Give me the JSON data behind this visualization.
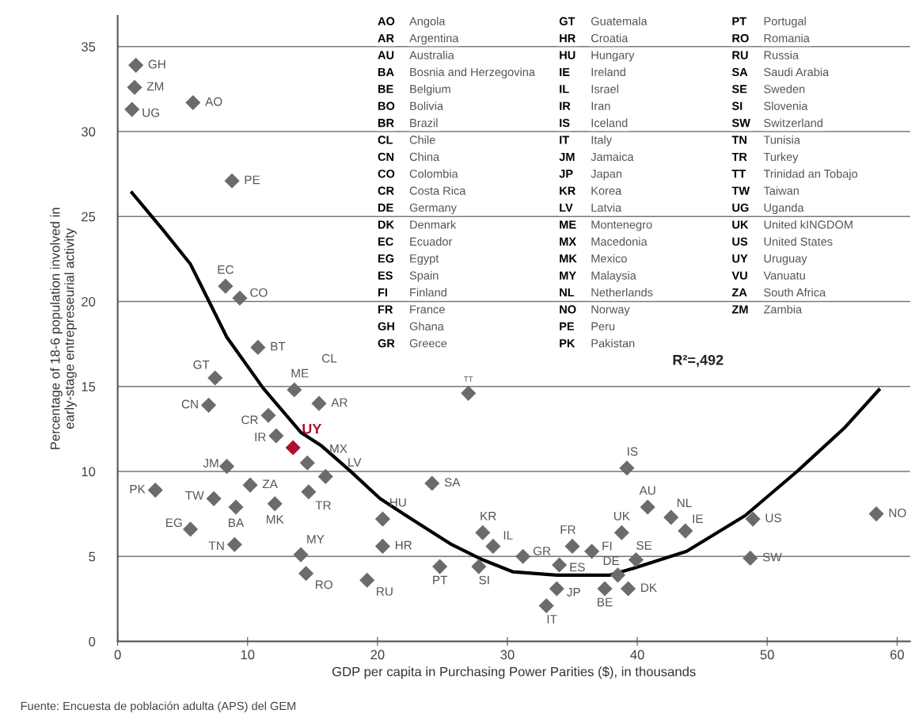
{
  "chart_data": {
    "type": "scatter",
    "xlabel": "GDP per capita in Purchasing Power Parities ($), in thousands",
    "ylabel": "Percentage of 18-6 population involved in\nearly-stage entrepreseurial activity",
    "xlim": [
      0,
      61
    ],
    "xticks": [
      0,
      10,
      20,
      30,
      40,
      50,
      60
    ],
    "ylim": [
      0,
      36.8
    ],
    "yticks": [
      0,
      5,
      10,
      15,
      20,
      25,
      30,
      35
    ],
    "grid": "y",
    "marker": "diamond",
    "series": [
      {
        "color": "#6b6b6b",
        "x": [
          1.4,
          1.3,
          1.1,
          5.8,
          8.8,
          8.3,
          9.4,
          10.8,
          7.5,
          13.6,
          15.5,
          7.0,
          11.6,
          12.2,
          14.6,
          16.0,
          8.4,
          10.2,
          2.9,
          7.4,
          9.1,
          12.1,
          14.7,
          5.6,
          9.0,
          14.1,
          14.5,
          19.2,
          27.0,
          24.2,
          20.4,
          20.4,
          28.1,
          28.9,
          31.2,
          24.8,
          27.8,
          35.0,
          36.5,
          34.0,
          33.8,
          33.0,
          37.5,
          38.8,
          38.5,
          39.3,
          39.9,
          39.2,
          40.8,
          42.6,
          43.7,
          48.9,
          48.7,
          58.4
        ],
        "values": [
          33.9,
          32.6,
          31.3,
          31.7,
          27.1,
          20.9,
          20.2,
          17.3,
          15.5,
          14.8,
          14.0,
          13.9,
          13.3,
          12.1,
          10.5,
          9.7,
          10.3,
          9.2,
          8.9,
          8.4,
          7.9,
          8.1,
          8.8,
          6.6,
          5.7,
          5.1,
          4.0,
          3.6,
          14.6,
          9.3,
          7.2,
          5.6,
          6.4,
          5.6,
          5.0,
          4.4,
          4.4,
          5.6,
          5.3,
          4.5,
          3.1,
          2.1,
          3.1,
          6.4,
          3.9,
          3.1,
          4.8,
          10.2,
          7.9,
          7.3,
          6.5,
          7.2,
          4.9,
          7.5
        ]
      },
      {
        "name": "UY",
        "color": "#b0102f",
        "x": [
          13.5
        ],
        "values": [
          11.4
        ]
      },
      {
        "type": "line",
        "marker": "none",
        "color": "#000000",
        "x": [
          1.1,
          3.5,
          5.6,
          8.4,
          11.2,
          14.1,
          15.7,
          17.8,
          20.2,
          21.6,
          25.7,
          28.1,
          30.4,
          33.8,
          37.9,
          39.7,
          43.8,
          48.3,
          52.3,
          56.0,
          58.6
        ],
        "values": [
          26.4,
          24.2,
          22.2,
          17.9,
          14.9,
          12.3,
          11.5,
          10.1,
          8.4,
          7.7,
          5.7,
          4.8,
          4.1,
          3.9,
          3.9,
          4.3,
          5.3,
          7.4,
          10.0,
          12.6,
          14.8
        ]
      }
    ],
    "annotations": [
      {
        "text": "GH",
        "x": 1.4,
        "y": 33.9
      },
      {
        "text": "ZM",
        "x": 1.3,
        "y": 32.6
      },
      {
        "text": "UG",
        "x": 1.1,
        "y": 31.3
      },
      {
        "text": "AO",
        "x": 5.8,
        "y": 31.7
      },
      {
        "text": "PE",
        "x": 8.8,
        "y": 27.1
      },
      {
        "text": "EC",
        "x": 8.3,
        "y": 20.9
      },
      {
        "text": "CO",
        "x": 9.4,
        "y": 20.2
      },
      {
        "text": "BT",
        "x": 10.8,
        "y": 17.3
      },
      {
        "text": "GT",
        "x": 7.5,
        "y": 15.5
      },
      {
        "text": "ME",
        "x": 13.6,
        "y": 14.8
      },
      {
        "text": "AR",
        "x": 15.5,
        "y": 14.0
      },
      {
        "text": "CN",
        "x": 7.0,
        "y": 13.9
      },
      {
        "text": "CR",
        "x": 11.6,
        "y": 13.3
      },
      {
        "text": "IR",
        "x": 12.2,
        "y": 12.1
      },
      {
        "text": "MX",
        "x": 14.6,
        "y": 10.5
      },
      {
        "text": "LV",
        "x": 16.0,
        "y": 9.7
      },
      {
        "text": "JM",
        "x": 8.4,
        "y": 10.3
      },
      {
        "text": "ZA",
        "x": 10.2,
        "y": 9.2
      },
      {
        "text": "PK",
        "x": 2.9,
        "y": 8.9
      },
      {
        "text": "TW",
        "x": 7.4,
        "y": 8.4
      },
      {
        "text": "BA",
        "x": 9.1,
        "y": 7.9
      },
      {
        "text": "MK",
        "x": 12.1,
        "y": 8.1
      },
      {
        "text": "TR",
        "x": 14.7,
        "y": 8.8
      },
      {
        "text": "EG",
        "x": 5.6,
        "y": 6.6
      },
      {
        "text": "TN",
        "x": 9.0,
        "y": 5.7
      },
      {
        "text": "MY",
        "x": 14.1,
        "y": 5.1
      },
      {
        "text": "RO",
        "x": 14.5,
        "y": 4.0
      },
      {
        "text": "RU",
        "x": 19.2,
        "y": 3.6
      },
      {
        "text": "TT",
        "x": 27.0,
        "y": 14.6
      },
      {
        "text": "SA",
        "x": 24.2,
        "y": 9.3
      },
      {
        "text": "HU",
        "x": 20.4,
        "y": 7.2
      },
      {
        "text": "HR",
        "x": 20.4,
        "y": 5.6
      },
      {
        "text": "KR",
        "x": 28.1,
        "y": 6.4
      },
      {
        "text": "IL",
        "x": 28.9,
        "y": 5.6
      },
      {
        "text": "GR",
        "x": 31.2,
        "y": 5.0
      },
      {
        "text": "PT",
        "x": 24.8,
        "y": 4.4
      },
      {
        "text": "SI",
        "x": 27.8,
        "y": 4.4
      },
      {
        "text": "FR",
        "x": 35.0,
        "y": 5.6
      },
      {
        "text": "FI",
        "x": 36.5,
        "y": 5.3
      },
      {
        "text": "ES",
        "x": 34.0,
        "y": 4.5
      },
      {
        "text": "JP",
        "x": 33.8,
        "y": 3.1
      },
      {
        "text": "IT",
        "x": 33.0,
        "y": 2.1
      },
      {
        "text": "BE",
        "x": 37.5,
        "y": 3.1
      },
      {
        "text": "UK",
        "x": 38.8,
        "y": 6.4
      },
      {
        "text": "DE",
        "x": 38.5,
        "y": 3.9
      },
      {
        "text": "DK",
        "x": 39.3,
        "y": 3.1
      },
      {
        "text": "SE",
        "x": 39.9,
        "y": 4.8
      },
      {
        "text": "IS",
        "x": 39.2,
        "y": 10.2
      },
      {
        "text": "AU",
        "x": 40.8,
        "y": 7.9
      },
      {
        "text": "NL",
        "x": 42.6,
        "y": 7.3
      },
      {
        "text": "IE",
        "x": 43.7,
        "y": 6.5
      },
      {
        "text": "US",
        "x": 48.9,
        "y": 7.2
      },
      {
        "text": "SW",
        "x": 48.7,
        "y": 4.9
      },
      {
        "text": "NO",
        "x": 58.4,
        "y": 7.5
      },
      "CL",
      "AO Angola",
      "AR Argentina",
      "AU Australia",
      "BA Bosnia and Herzegovina",
      "BE Belgium",
      "BO Bolivia",
      "BR Brazil",
      "CL Chile",
      "CN China",
      "CO Colombia",
      "CR Costa Rica",
      "DE Germany",
      "DK Denmark",
      "EC Ecuador",
      "EG Egypt",
      "ES Spain",
      "FI Finland",
      "FR France",
      "GH Ghana",
      "GR Greece",
      "GT Guatemala",
      "HR Croatia",
      "HU Hungary",
      "IE Ireland",
      "IL Israel",
      "IR Iran",
      "IS Iceland",
      "IT Italy",
      "JM Jamaica",
      "JP Japan",
      "KR Korea",
      "LV Latvia",
      "ME Montenegro",
      "MX Macedonia",
      "MK Mexico",
      "MY Malaysia",
      "NL Netherlands",
      "NO Norway",
      "PE Peru",
      "PK Pakistan",
      "PT Portugal",
      "RO Romania",
      "RU Russia",
      "SA Saudi Arabia",
      "SE Sweden",
      "SI Slovenia",
      "SW Switzerland",
      "TN Tunisia",
      "TR Turkey",
      "TT Trinidad an Tobajo",
      "TW Taiwan",
      "UG Uganda",
      "UK United kINGDOM",
      "US United States",
      "UY Uruguay",
      "VU Vanuatu",
      "ZA South Africa",
      "ZM Zambia",
      "R²=,492",
      "Fuente: Encuesta de población adulta (APS) del GEM"
    ]
  }
}
